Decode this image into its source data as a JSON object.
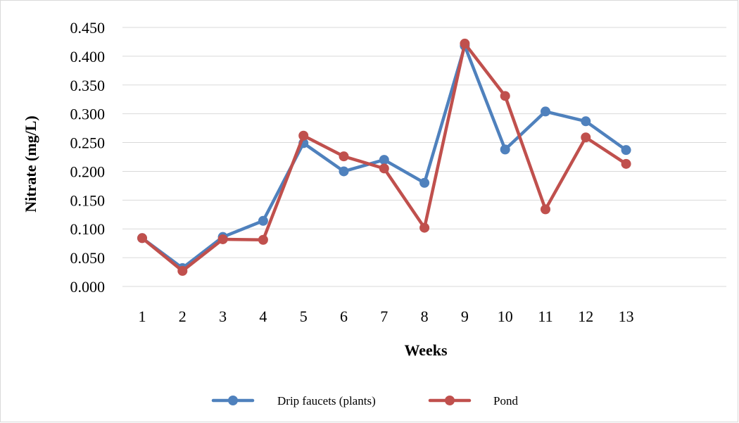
{
  "colors": {
    "drip": "#4f81bd",
    "pond": "#c0504d",
    "grid": "#d9d9d9"
  },
  "chart_data": {
    "type": "line",
    "title": "",
    "xlabel": "Weeks",
    "ylabel": "Nitrate (mg/L)",
    "ylim": [
      0,
      0.45
    ],
    "yticks": [
      "0.000",
      "0.050",
      "0.100",
      "0.150",
      "0.200",
      "0.250",
      "0.300",
      "0.350",
      "0.400",
      "0.450"
    ],
    "grid": true,
    "legend_position": "bottom",
    "categories": [
      "1",
      "2",
      "3",
      "4",
      "5",
      "6",
      "7",
      "8",
      "9",
      "10",
      "11",
      "12",
      "13"
    ],
    "series": [
      {
        "name": "Drip faucets (plants)",
        "color": "#4f81bd",
        "values": [
          0.084,
          0.032,
          0.086,
          0.114,
          0.249,
          0.2,
          0.22,
          0.18,
          0.418,
          0.238,
          0.304,
          0.287,
          0.237
        ]
      },
      {
        "name": "Pond",
        "color": "#c0504d",
        "values": [
          0.084,
          0.027,
          0.082,
          0.081,
          0.262,
          0.226,
          0.205,
          0.102,
          0.422,
          0.331,
          0.134,
          0.259,
          0.213
        ]
      }
    ]
  }
}
